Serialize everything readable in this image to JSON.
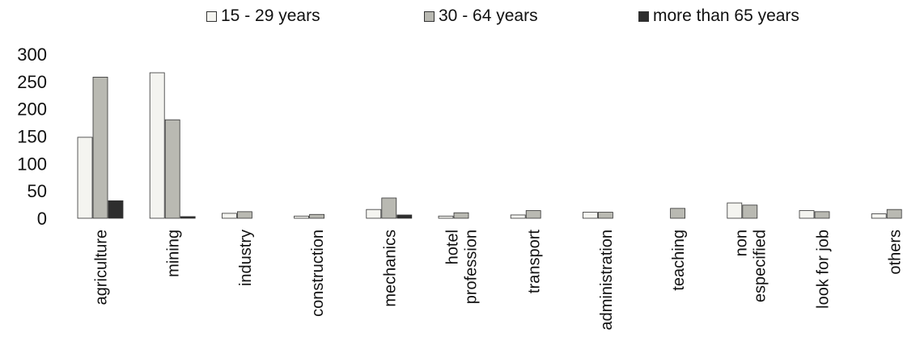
{
  "chart_data": {
    "type": "bar",
    "categories": [
      "agriculture",
      "mining",
      "industry",
      "construction",
      "mechanics",
      "hotel\nprofession",
      "transport",
      "administration",
      "teaching",
      "non\nespecified",
      "look for job",
      "others"
    ],
    "series": [
      {
        "name": "15 - 29 years",
        "values": [
          148,
          266,
          9,
          4,
          16,
          4,
          6,
          11,
          0,
          28,
          14,
          8
        ],
        "color": "#f4f4f0"
      },
      {
        "name": "30 - 64 years",
        "values": [
          258,
          180,
          12,
          7,
          37,
          10,
          14,
          11,
          18,
          24,
          12,
          16
        ],
        "color": "#b9b9b2"
      },
      {
        "name": "more than 65 years",
        "values": [
          32,
          3,
          0,
          0,
          6,
          0,
          0,
          0,
          0,
          0,
          0,
          0
        ],
        "color": "#2e2e2e"
      }
    ],
    "yticks": [
      0,
      50,
      100,
      150,
      200,
      250,
      300
    ],
    "ylim": [
      0,
      300
    ],
    "legend_position": "top",
    "grid": false
  }
}
